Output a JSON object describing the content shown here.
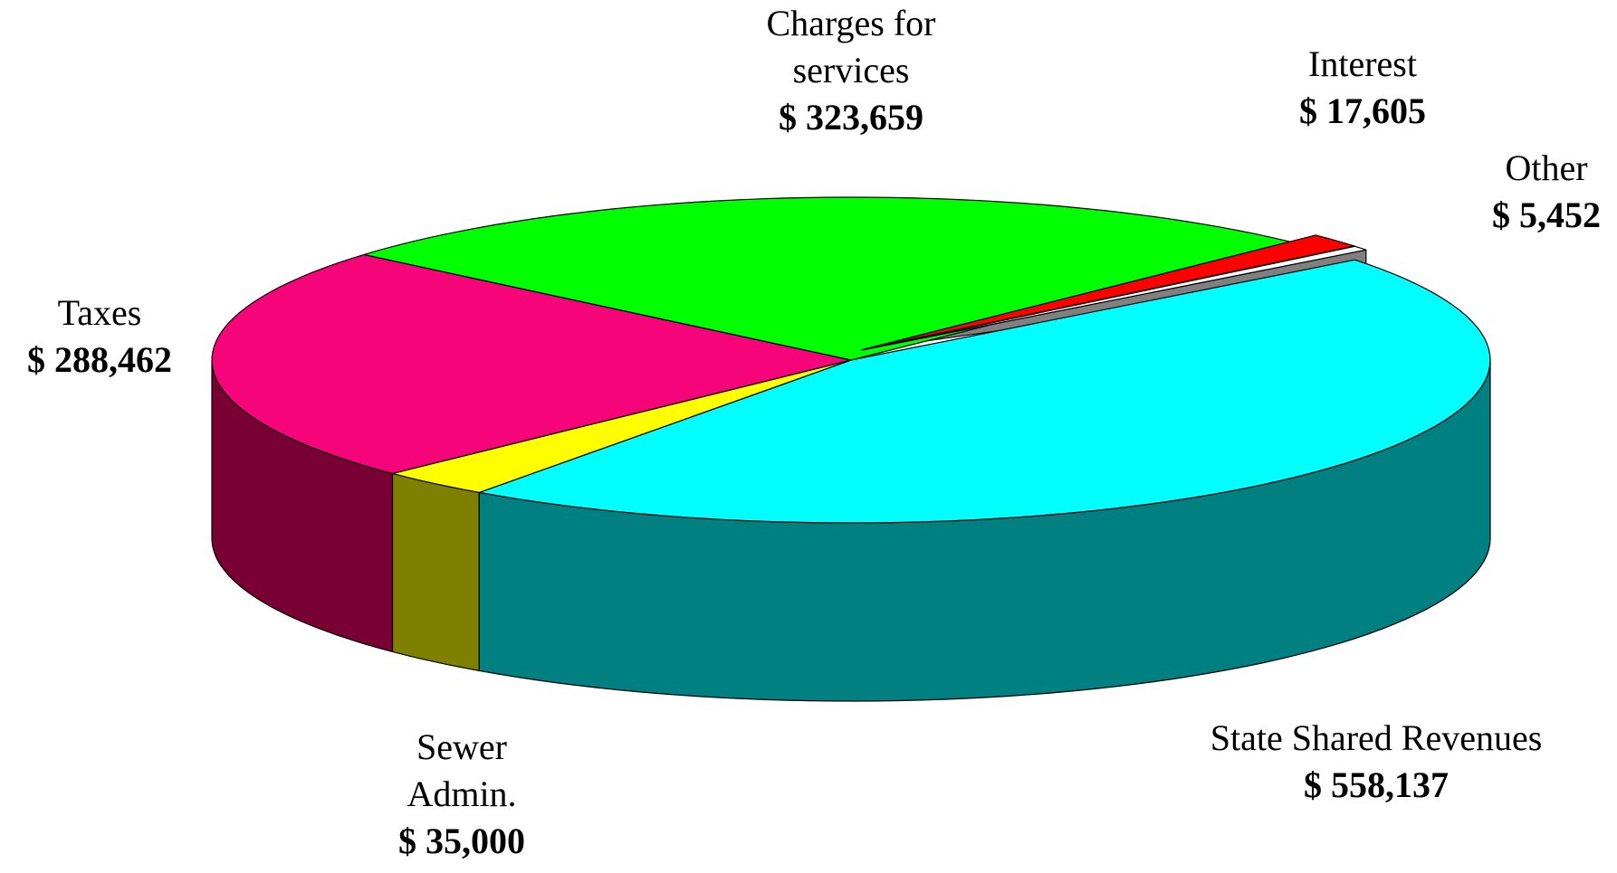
{
  "chart_data": {
    "type": "pie",
    "categories": [
      "State Shared Revenues",
      "Sewer Admin.",
      "Taxes",
      "Charges for services",
      "Interest",
      "Other"
    ],
    "values": [
      558137,
      35000,
      288462,
      323659,
      17605,
      5452
    ],
    "value_labels": [
      "$ 558,137",
      "$ 35,000",
      "$ 288,462",
      "$ 323,659",
      "$ 17,605",
      "$ 5,452"
    ],
    "colors": [
      "#00ffff",
      "#ffff00",
      "#f5047a",
      "#00ff00",
      "#ff0000",
      "#ffffff"
    ],
    "side_colors": [
      "#008080",
      "#808000",
      "#780032",
      "#008000",
      "#800000",
      "#808080"
    ]
  }
}
